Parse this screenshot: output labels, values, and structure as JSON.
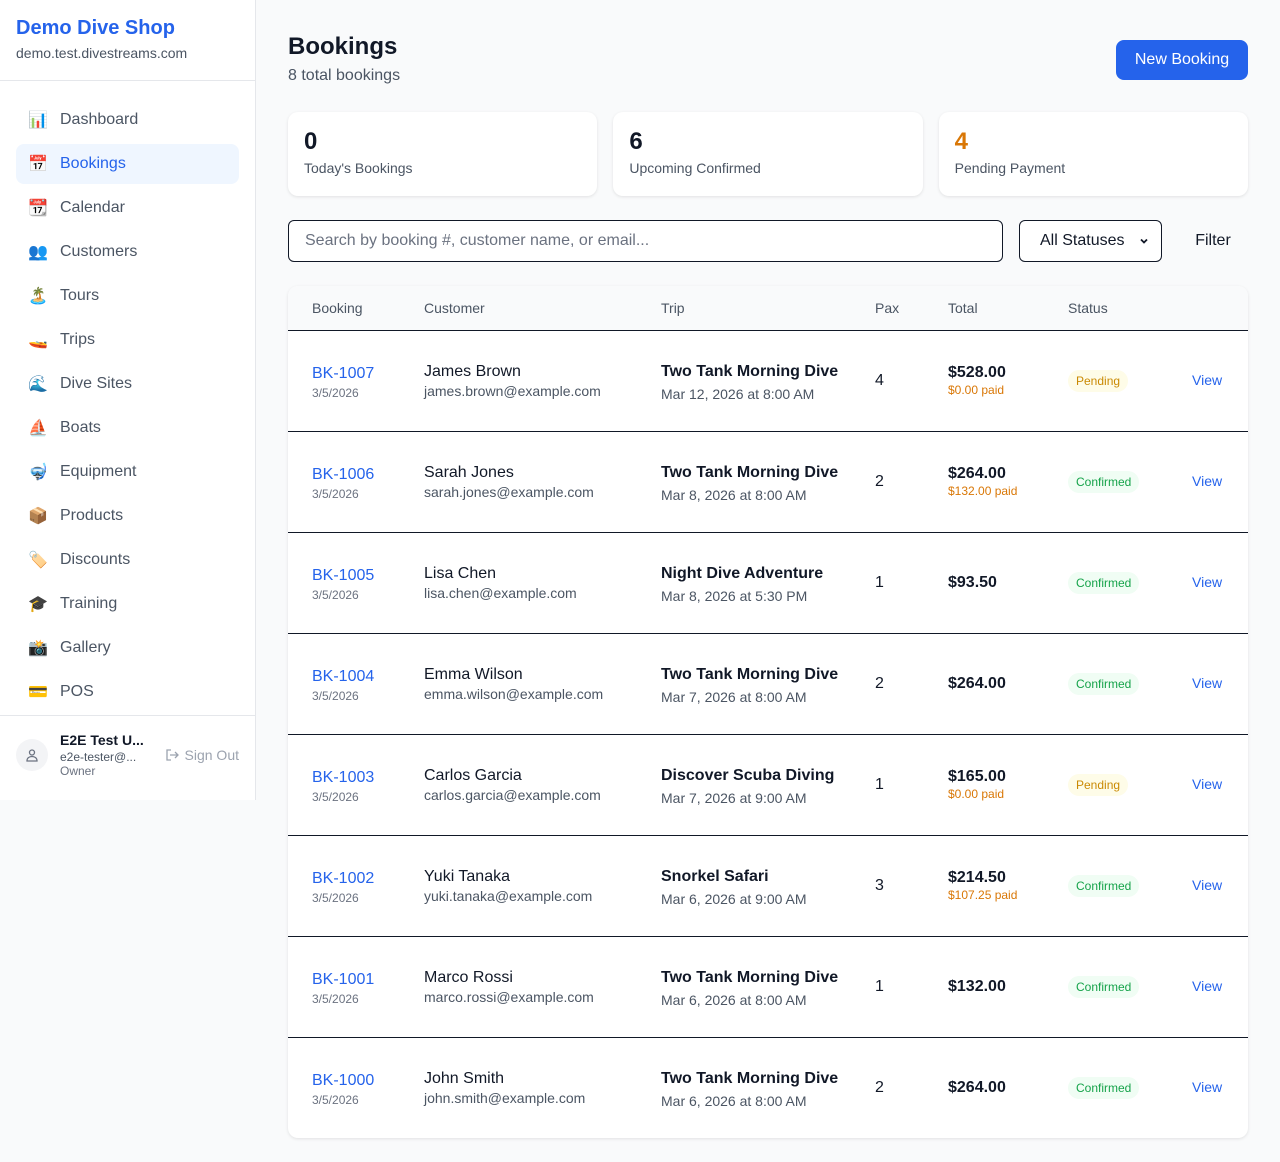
{
  "sidebar": {
    "shop_name": "Demo Dive Shop",
    "domain": "demo.test.divestreams.com",
    "items": [
      {
        "icon": "📊",
        "icon_name": "chart-icon",
        "label": "Dashboard"
      },
      {
        "icon": "📅",
        "icon_name": "calendar-icon",
        "label": "Bookings",
        "active": true
      },
      {
        "icon": "📆",
        "icon_name": "calendar-pad-icon",
        "label": "Calendar"
      },
      {
        "icon": "👥",
        "icon_name": "users-icon",
        "label": "Customers"
      },
      {
        "icon": "🏝️",
        "icon_name": "island-icon",
        "label": "Tours"
      },
      {
        "icon": "🚤",
        "icon_name": "boat-icon",
        "label": "Trips"
      },
      {
        "icon": "🌊",
        "icon_name": "wave-icon",
        "label": "Dive Sites"
      },
      {
        "icon": "⛵",
        "icon_name": "sailboat-icon",
        "label": "Boats"
      },
      {
        "icon": "🤿",
        "icon_name": "mask-icon",
        "label": "Equipment"
      },
      {
        "icon": "📦",
        "icon_name": "package-icon",
        "label": "Products"
      },
      {
        "icon": "🏷️",
        "icon_name": "tag-icon",
        "label": "Discounts"
      },
      {
        "icon": "🎓",
        "icon_name": "graduation-icon",
        "label": "Training"
      },
      {
        "icon": "📸",
        "icon_name": "camera-icon",
        "label": "Gallery"
      },
      {
        "icon": "💳",
        "icon_name": "credit-card-icon",
        "label": "POS"
      }
    ],
    "user": {
      "name": "E2E Test U...",
      "email": "e2e-tester@...",
      "role": "Owner",
      "sign_out": "Sign Out"
    }
  },
  "header": {
    "title": "Bookings",
    "subtitle": "8 total bookings",
    "new_button": "New Booking"
  },
  "stats": [
    {
      "value": "0",
      "label": "Today's Bookings",
      "color": "#111827"
    },
    {
      "value": "6",
      "label": "Upcoming Confirmed",
      "color": "#111827"
    },
    {
      "value": "4",
      "label": "Pending Payment",
      "color": "#d97706"
    }
  ],
  "filters": {
    "search_placeholder": "Search by booking #, customer name, or email...",
    "status_selected": "All Statuses",
    "filter_button": "Filter"
  },
  "table": {
    "columns": [
      "Booking",
      "Customer",
      "Trip",
      "Pax",
      "Total",
      "Status",
      ""
    ],
    "rows": [
      {
        "id": "BK-1007",
        "date": "3/5/2026",
        "customer": "James Brown",
        "email": "james.brown@example.com",
        "trip": "Two Tank Morning Dive",
        "trip_date": "Mar 12, 2026 at 8:00 AM",
        "pax": "4",
        "total": "$528.00",
        "paid": "$0.00 paid",
        "status": "Pending",
        "action": "View"
      },
      {
        "id": "BK-1006",
        "date": "3/5/2026",
        "customer": "Sarah Jones",
        "email": "sarah.jones@example.com",
        "trip": "Two Tank Morning Dive",
        "trip_date": "Mar 8, 2026 at 8:00 AM",
        "pax": "2",
        "total": "$264.00",
        "paid": "$132.00 paid",
        "status": "Confirmed",
        "action": "View"
      },
      {
        "id": "BK-1005",
        "date": "3/5/2026",
        "customer": "Lisa Chen",
        "email": "lisa.chen@example.com",
        "trip": "Night Dive Adventure",
        "trip_date": "Mar 8, 2026 at 5:30 PM",
        "pax": "1",
        "total": "$93.50",
        "paid": "",
        "status": "Confirmed",
        "action": "View"
      },
      {
        "id": "BK-1004",
        "date": "3/5/2026",
        "customer": "Emma Wilson",
        "email": "emma.wilson@example.com",
        "trip": "Two Tank Morning Dive",
        "trip_date": "Mar 7, 2026 at 8:00 AM",
        "pax": "2",
        "total": "$264.00",
        "paid": "",
        "status": "Confirmed",
        "action": "View"
      },
      {
        "id": "BK-1003",
        "date": "3/5/2026",
        "customer": "Carlos Garcia",
        "email": "carlos.garcia@example.com",
        "trip": "Discover Scuba Diving",
        "trip_date": "Mar 7, 2026 at 9:00 AM",
        "pax": "1",
        "total": "$165.00",
        "paid": "$0.00 paid",
        "status": "Pending",
        "action": "View"
      },
      {
        "id": "BK-1002",
        "date": "3/5/2026",
        "customer": "Yuki Tanaka",
        "email": "yuki.tanaka@example.com",
        "trip": "Snorkel Safari",
        "trip_date": "Mar 6, 2026 at 9:00 AM",
        "pax": "3",
        "total": "$214.50",
        "paid": "$107.25 paid",
        "status": "Confirmed",
        "action": "View"
      },
      {
        "id": "BK-1001",
        "date": "3/5/2026",
        "customer": "Marco Rossi",
        "email": "marco.rossi@example.com",
        "trip": "Two Tank Morning Dive",
        "trip_date": "Mar 6, 2026 at 8:00 AM",
        "pax": "1",
        "total": "$132.00",
        "paid": "",
        "status": "Confirmed",
        "action": "View"
      },
      {
        "id": "BK-1000",
        "date": "3/5/2026",
        "customer": "John Smith",
        "email": "john.smith@example.com",
        "trip": "Two Tank Morning Dive",
        "trip_date": "Mar 6, 2026 at 8:00 AM",
        "pax": "2",
        "total": "$264.00",
        "paid": "",
        "status": "Confirmed",
        "action": "View"
      }
    ]
  }
}
